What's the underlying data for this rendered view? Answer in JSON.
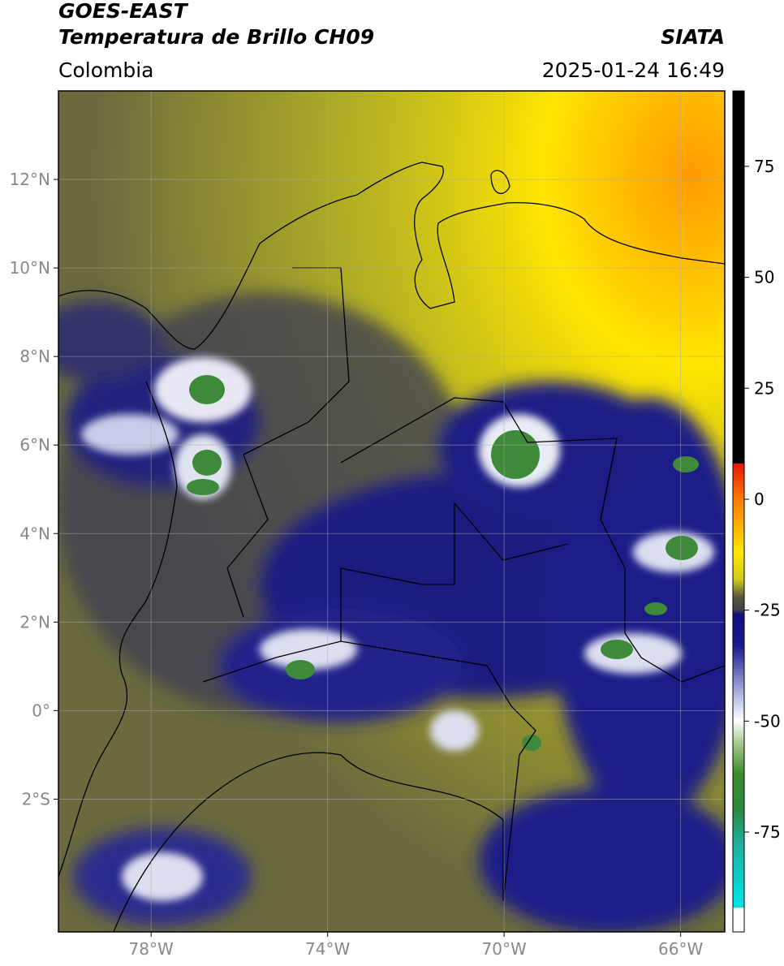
{
  "header": {
    "title": "GOES-EAST",
    "subtitle": "Temperatura de Brillo CH09",
    "source": "SIATA",
    "region": "Colombia",
    "datetime": "2025-01-24 16:49"
  },
  "map": {
    "lon_range": [
      -80.1,
      -65
    ],
    "lat_range": [
      -5,
      14
    ],
    "grid": true,
    "lon_ticks": [
      {
        "value": -78,
        "label": "78°W"
      },
      {
        "value": -74,
        "label": "74°W"
      },
      {
        "value": -70,
        "label": "70°W"
      },
      {
        "value": -66,
        "label": "66°W"
      }
    ],
    "lat_ticks": [
      {
        "value": 12,
        "label": "12°N"
      },
      {
        "value": 10,
        "label": "10°N"
      },
      {
        "value": 8,
        "label": "8°N"
      },
      {
        "value": 6,
        "label": "6°N"
      },
      {
        "value": 4,
        "label": "4°N"
      },
      {
        "value": 2,
        "label": "2°N"
      },
      {
        "value": 0,
        "label": "0°"
      },
      {
        "value": -2,
        "label": "2°S"
      }
    ]
  },
  "colorbar": {
    "range": [
      -97.5,
      92
    ],
    "ticks": [
      75,
      50,
      25,
      0,
      -25,
      -50,
      -75
    ],
    "stops": [
      {
        "value": 92,
        "color": "#000000"
      },
      {
        "value": 8,
        "color": "#000000"
      },
      {
        "value": 8,
        "color": "#e8140a"
      },
      {
        "value": 0,
        "color": "#ff7a00"
      },
      {
        "value": -12,
        "color": "#ffe800"
      },
      {
        "value": -18,
        "color": "#d0cc1a"
      },
      {
        "value": -22,
        "color": "#5a5a3a"
      },
      {
        "value": -25,
        "color": "#404048"
      },
      {
        "value": -26,
        "color": "#10107e"
      },
      {
        "value": -33,
        "color": "#1a1a90"
      },
      {
        "value": -45,
        "color": "#c0c4e8"
      },
      {
        "value": -50,
        "color": "#ffffff"
      },
      {
        "value": -55,
        "color": "#a8c890"
      },
      {
        "value": -62,
        "color": "#3a8a2a"
      },
      {
        "value": -70,
        "color": "#2a8a40"
      },
      {
        "value": -78,
        "color": "#20b0a0"
      },
      {
        "value": -90,
        "color": "#00e0e0"
      },
      {
        "value": -92,
        "color": "#00e0e0"
      },
      {
        "value": -92,
        "color": "#ffffff"
      },
      {
        "value": -97.5,
        "color": "#ffffff"
      }
    ]
  }
}
